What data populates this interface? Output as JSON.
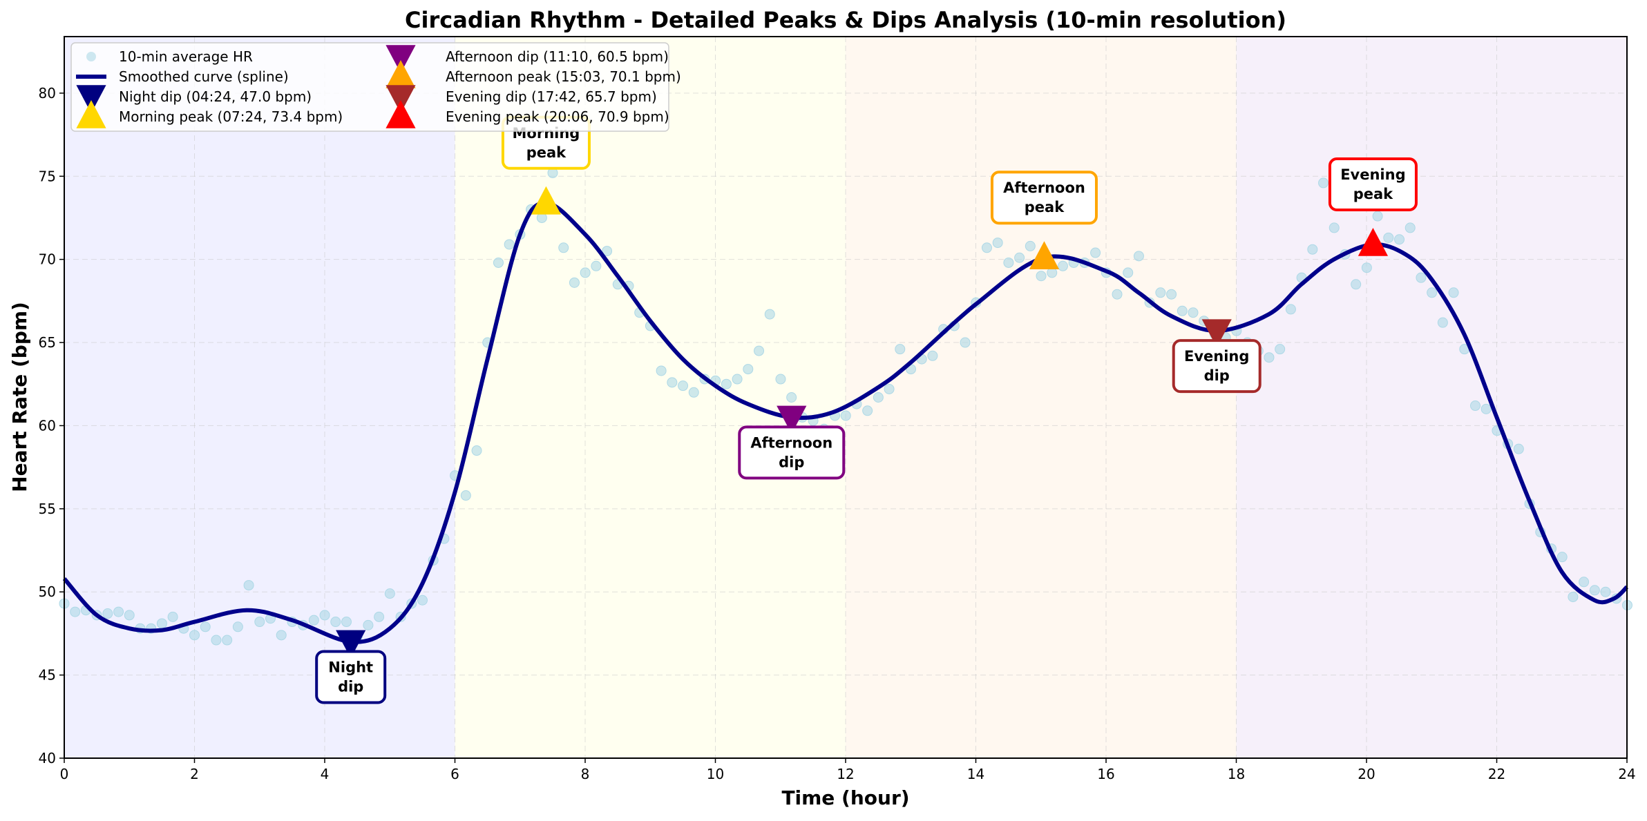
{
  "chart_data": {
    "type": "line",
    "title": "Circadian Rhythm - Detailed Peaks & Dips Analysis (10-min resolution)",
    "xlabel": "Time (hour)",
    "ylabel": "Heart Rate (bpm)",
    "xlim": [
      0,
      24
    ],
    "ylim": [
      40,
      83.4
    ],
    "xticks": [
      0,
      2,
      4,
      6,
      8,
      10,
      12,
      14,
      16,
      18,
      20,
      22,
      24
    ],
    "yticks": [
      40,
      45,
      50,
      55,
      60,
      65,
      70,
      75,
      80
    ],
    "grid": true,
    "legend_placement": "top-left",
    "period_bands": [
      {
        "from": 0,
        "to": 6,
        "color": "#f0f0ff"
      },
      {
        "from": 6,
        "to": 12,
        "color": "#fffff0"
      },
      {
        "from": 12,
        "to": 18,
        "color": "#fff8f0"
      },
      {
        "from": 18,
        "to": 24,
        "color": "#f6f0fa"
      }
    ],
    "scatter": {
      "name": "10-min average HR",
      "color": "#add8e6",
      "step_hours": 0.1667,
      "values": [
        49.3,
        48.8,
        48.9,
        48.6,
        48.7,
        48.8,
        48.6,
        47.8,
        47.8,
        48.1,
        48.5,
        47.8,
        47.4,
        47.9,
        47.1,
        47.1,
        47.9,
        50.4,
        48.2,
        48.4,
        47.4,
        48.2,
        48.0,
        48.3,
        48.6,
        48.2,
        48.2,
        47.3,
        48.0,
        48.5,
        49.9,
        48.5,
        49.3,
        49.5,
        51.9,
        53.2,
        57.0,
        55.8,
        58.5,
        65.0,
        69.8,
        70.9,
        71.5,
        73.0,
        72.5,
        75.2,
        70.7,
        68.6,
        69.2,
        69.6,
        70.5,
        68.5,
        68.4,
        66.8,
        66.0,
        63.3,
        62.6,
        62.4,
        62.0,
        62.8,
        62.7,
        62.5,
        62.8,
        63.4,
        64.5,
        66.7,
        62.8,
        61.7,
        60.5,
        60.3,
        59.8,
        60.6,
        60.6,
        61.3,
        60.9,
        61.7,
        62.2,
        64.6,
        63.4,
        64.0,
        64.2,
        65.8,
        66.0,
        65.0,
        67.4,
        70.7,
        71.0,
        69.8,
        70.1,
        70.8,
        69.0,
        69.2,
        69.6,
        69.8,
        69.8,
        70.4,
        69.2,
        67.9,
        69.2,
        70.2,
        67.4,
        68.0,
        67.9,
        66.9,
        66.8,
        66.3,
        65.5,
        65.3,
        65.7,
        65.0,
        64.5,
        64.1,
        64.6,
        67.0,
        68.9,
        70.6,
        74.6,
        71.9,
        70.3,
        68.5,
        69.5,
        72.6,
        71.3,
        71.2,
        71.9,
        68.9,
        68.0,
        66.2,
        68.0,
        64.6,
        61.2,
        61.0,
        59.7,
        58.9,
        58.6,
        55.3,
        53.6,
        52.6,
        52.1,
        49.7,
        50.6,
        50.1,
        50.0,
        49.6,
        49.2
      ]
    },
    "smoothed": {
      "name": "Smoothed curve (spline)",
      "color": "#00008b",
      "x": [
        0,
        0.5,
        1,
        1.5,
        2,
        2.8,
        3.5,
        4.4,
        5,
        5.5,
        6,
        6.5,
        7,
        7.4,
        8,
        8.5,
        9,
        9.5,
        10,
        10.5,
        11.17,
        11.8,
        12.5,
        13,
        14,
        15.05,
        16,
        16.5,
        17,
        17.7,
        18.5,
        19,
        19.5,
        20.1,
        20.6,
        21,
        21.5,
        22,
        22.5,
        23,
        23.5,
        23.8,
        24
      ],
      "y": [
        50.8,
        48.6,
        47.8,
        47.7,
        48.2,
        48.9,
        48.3,
        47.0,
        47.8,
        50.5,
        56.0,
        64.0,
        71.5,
        73.4,
        71.5,
        69.0,
        66.3,
        64.0,
        62.4,
        61.3,
        60.5,
        60.8,
        62.3,
        63.8,
        67.3,
        70.1,
        69.3,
        68.0,
        66.6,
        65.7,
        66.7,
        68.5,
        70.0,
        70.9,
        70.3,
        68.8,
        65.5,
        60.5,
        55.5,
        51.2,
        49.5,
        49.6,
        50.3
      ]
    },
    "markers": [
      {
        "legend": "Night dip (04:24, 47.0 bpm)",
        "label_line1": "Night",
        "label_line2": "dip",
        "kind": "dip",
        "x": 4.4,
        "y": 47.0,
        "color": "#000080"
      },
      {
        "legend": "Morning peak (07:24, 73.4 bpm)",
        "label_line1": "Morning",
        "label_line2": "peak",
        "kind": "peak",
        "x": 7.4,
        "y": 73.4,
        "color": "#ffd700"
      },
      {
        "legend": "Afternoon dip (11:10, 60.5 bpm)",
        "label_line1": "Afternoon",
        "label_line2": "dip",
        "kind": "dip",
        "x": 11.17,
        "y": 60.5,
        "color": "#800080"
      },
      {
        "legend": "Afternoon peak (15:03, 70.1 bpm)",
        "label_line1": "Afternoon",
        "label_line2": "peak",
        "kind": "peak",
        "x": 15.05,
        "y": 70.1,
        "color": "#ffa500"
      },
      {
        "legend": "Evening dip (17:42, 65.7 bpm)",
        "label_line1": "Evening",
        "label_line2": "dip",
        "kind": "dip",
        "x": 17.7,
        "y": 65.7,
        "color": "#a52a2a"
      },
      {
        "legend": "Evening peak (20:06, 70.9 bpm)",
        "label_line1": "Evening",
        "label_line2": "peak",
        "kind": "peak",
        "x": 20.1,
        "y": 70.9,
        "color": "#ff0000"
      }
    ]
  }
}
